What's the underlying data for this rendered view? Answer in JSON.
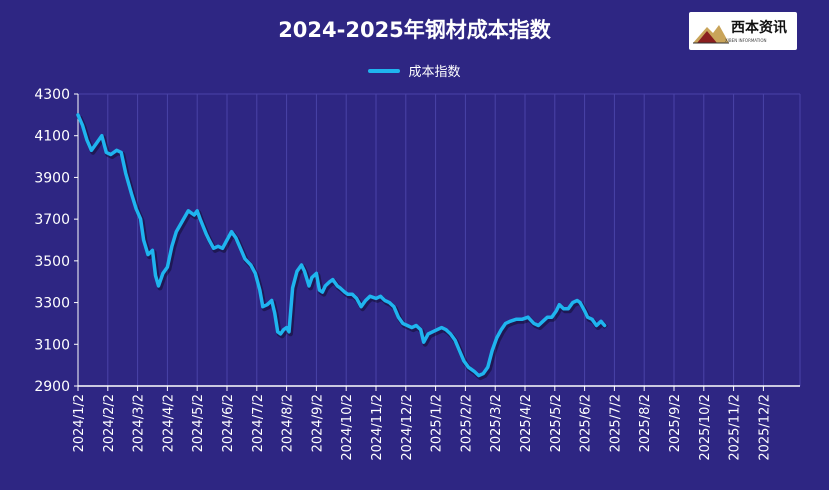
{
  "chart_data": {
    "type": "line",
    "title": "2024-2025年钢材成本指数",
    "legend_position": "top",
    "grid": true,
    "ylim": [
      2900,
      4300
    ],
    "yticks": [
      2900,
      3100,
      3300,
      3500,
      3700,
      3900,
      4100,
      4300
    ],
    "categories": [
      "2024/1/2",
      "2024/2/2",
      "2024/3/2",
      "2024/4/2",
      "2024/5/2",
      "2024/6/2",
      "2024/7/2",
      "2024/8/2",
      "2024/9/2",
      "2024/10/2",
      "2024/11/2",
      "2024/12/2",
      "2025/1/2",
      "2025/2/2",
      "2025/3/2",
      "2025/4/2",
      "2025/5/2",
      "2025/6/2",
      "2025/7/2",
      "2025/8/2",
      "2025/9/2",
      "2025/10/2",
      "2025/11/2",
      "2025/12/2"
    ],
    "colors": {
      "line": "#1fb4ef",
      "background": "#2e2683",
      "grid": "#4a43a8",
      "axis": "#ffffff"
    },
    "series": [
      {
        "name": "成本指数",
        "points": [
          [
            0,
            4200
          ],
          [
            0.15,
            4150
          ],
          [
            0.3,
            4080
          ],
          [
            0.45,
            4030
          ],
          [
            0.6,
            4060
          ],
          [
            0.8,
            4100
          ],
          [
            0.95,
            4020
          ],
          [
            1.1,
            4010
          ],
          [
            1.3,
            4030
          ],
          [
            1.45,
            4020
          ],
          [
            1.6,
            3920
          ],
          [
            1.8,
            3820
          ],
          [
            1.95,
            3750
          ],
          [
            2.1,
            3700
          ],
          [
            2.2,
            3600
          ],
          [
            2.35,
            3530
          ],
          [
            2.5,
            3550
          ],
          [
            2.6,
            3430
          ],
          [
            2.7,
            3380
          ],
          [
            2.85,
            3440
          ],
          [
            3.0,
            3470
          ],
          [
            3.15,
            3570
          ],
          [
            3.3,
            3640
          ],
          [
            3.5,
            3690
          ],
          [
            3.7,
            3740
          ],
          [
            3.9,
            3720
          ],
          [
            4.0,
            3740
          ],
          [
            4.1,
            3700
          ],
          [
            4.3,
            3630
          ],
          [
            4.4,
            3600
          ],
          [
            4.55,
            3560
          ],
          [
            4.7,
            3570
          ],
          [
            4.85,
            3560
          ],
          [
            5.0,
            3600
          ],
          [
            5.15,
            3640
          ],
          [
            5.3,
            3610
          ],
          [
            5.45,
            3560
          ],
          [
            5.6,
            3510
          ],
          [
            5.8,
            3480
          ],
          [
            5.95,
            3440
          ],
          [
            6.1,
            3360
          ],
          [
            6.2,
            3280
          ],
          [
            6.35,
            3290
          ],
          [
            6.5,
            3310
          ],
          [
            6.6,
            3250
          ],
          [
            6.7,
            3160
          ],
          [
            6.8,
            3150
          ],
          [
            6.9,
            3170
          ],
          [
            7.0,
            3180
          ],
          [
            7.08,
            3160
          ],
          [
            7.2,
            3370
          ],
          [
            7.35,
            3450
          ],
          [
            7.5,
            3480
          ],
          [
            7.6,
            3450
          ],
          [
            7.75,
            3380
          ],
          [
            7.85,
            3420
          ],
          [
            8.0,
            3440
          ],
          [
            8.1,
            3360
          ],
          [
            8.2,
            3350
          ],
          [
            8.3,
            3380
          ],
          [
            8.45,
            3400
          ],
          [
            8.55,
            3410
          ],
          [
            8.7,
            3380
          ],
          [
            8.8,
            3370
          ],
          [
            8.95,
            3350
          ],
          [
            9.05,
            3340
          ],
          [
            9.2,
            3340
          ],
          [
            9.35,
            3320
          ],
          [
            9.5,
            3280
          ],
          [
            9.65,
            3310
          ],
          [
            9.8,
            3330
          ],
          [
            10.0,
            3320
          ],
          [
            10.15,
            3330
          ],
          [
            10.3,
            3310
          ],
          [
            10.45,
            3300
          ],
          [
            10.6,
            3280
          ],
          [
            10.75,
            3230
          ],
          [
            10.9,
            3200
          ],
          [
            11.05,
            3190
          ],
          [
            11.2,
            3180
          ],
          [
            11.35,
            3190
          ],
          [
            11.5,
            3170
          ],
          [
            11.6,
            3110
          ],
          [
            11.75,
            3150
          ],
          [
            11.9,
            3160
          ],
          [
            12.05,
            3170
          ],
          [
            12.2,
            3180
          ],
          [
            12.35,
            3170
          ],
          [
            12.5,
            3150
          ],
          [
            12.65,
            3120
          ],
          [
            12.8,
            3070
          ],
          [
            12.95,
            3020
          ],
          [
            13.1,
            2990
          ],
          [
            13.3,
            2970
          ],
          [
            13.45,
            2950
          ],
          [
            13.6,
            2960
          ],
          [
            13.75,
            2990
          ],
          [
            13.9,
            3070
          ],
          [
            14.05,
            3130
          ],
          [
            14.2,
            3170
          ],
          [
            14.35,
            3200
          ],
          [
            14.5,
            3210
          ],
          [
            14.7,
            3220
          ],
          [
            14.9,
            3220
          ],
          [
            15.1,
            3230
          ],
          [
            15.3,
            3200
          ],
          [
            15.45,
            3190
          ],
          [
            15.6,
            3210
          ],
          [
            15.75,
            3230
          ],
          [
            15.9,
            3230
          ],
          [
            16.05,
            3260
          ],
          [
            16.15,
            3290
          ],
          [
            16.3,
            3270
          ],
          [
            16.45,
            3270
          ],
          [
            16.6,
            3300
          ],
          [
            16.75,
            3310
          ],
          [
            16.85,
            3300
          ],
          [
            17.0,
            3260
          ],
          [
            17.1,
            3230
          ],
          [
            17.25,
            3220
          ],
          [
            17.4,
            3190
          ],
          [
            17.55,
            3210
          ],
          [
            17.67,
            3190
          ]
        ]
      }
    ]
  },
  "logo": {
    "text": "西本资讯",
    "subtitle": "XIBEN INFORMATION"
  }
}
